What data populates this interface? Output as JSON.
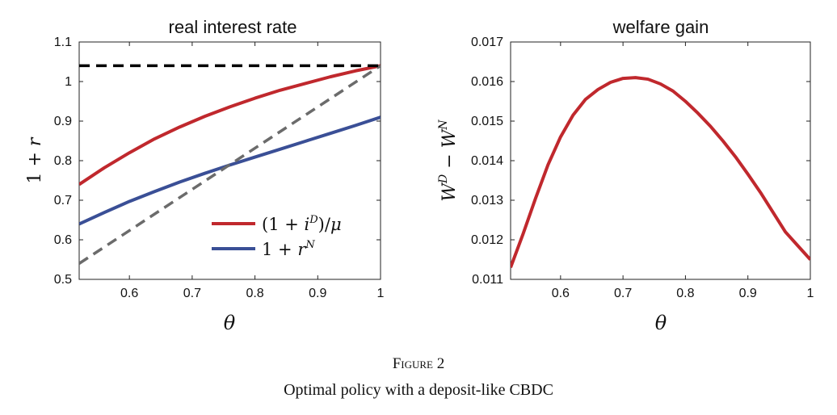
{
  "caption": {
    "figure_label": "Figure 2",
    "description": "Optimal policy with a deposit-like CBDC"
  },
  "chart_data": [
    {
      "type": "line",
      "title": "real interest rate",
      "xlabel": "θ",
      "ylabel": "1 + r",
      "xlim": [
        0.52,
        1.0
      ],
      "ylim": [
        0.5,
        1.1
      ],
      "xticks": [
        0.6,
        0.7,
        0.8,
        0.9,
        1
      ],
      "xtick_labels": [
        "0.6",
        "0.7",
        "0.8",
        "0.9",
        "1"
      ],
      "yticks": [
        0.5,
        0.6,
        0.7,
        0.8,
        0.9,
        1.0,
        1.1
      ],
      "ytick_labels": [
        "0.5",
        "0.6",
        "0.7",
        "0.8",
        "0.9",
        "1",
        "1.1"
      ],
      "grid": false,
      "legend_position": "bottom-right",
      "series": [
        {
          "name": "(1 + i^D)/μ",
          "color": "#c0282d",
          "style": "solid",
          "x": [
            0.52,
            0.56,
            0.6,
            0.64,
            0.68,
            0.72,
            0.76,
            0.8,
            0.84,
            0.88,
            0.92,
            0.96,
            1.0
          ],
          "y": [
            0.74,
            0.782,
            0.82,
            0.855,
            0.885,
            0.912,
            0.936,
            0.958,
            0.978,
            0.995,
            1.012,
            1.027,
            1.04
          ]
        },
        {
          "name": "1 + r^N",
          "color": "#3a4f96",
          "style": "solid",
          "x": [
            0.52,
            0.56,
            0.6,
            0.64,
            0.68,
            0.72,
            0.76,
            0.8,
            0.84,
            0.88,
            0.92,
            0.96,
            1.0
          ],
          "y": [
            0.64,
            0.669,
            0.697,
            0.722,
            0.746,
            0.768,
            0.789,
            0.809,
            0.829,
            0.849,
            0.869,
            0.889,
            0.91
          ]
        },
        {
          "color": "#6b6b6b",
          "style": "dashed",
          "x": [
            0.52,
            1.0
          ],
          "y": [
            0.54,
            1.04
          ]
        },
        {
          "color": "#000000",
          "style": "dashed",
          "x": [
            0.52,
            1.0
          ],
          "y": [
            1.04,
            1.04
          ]
        }
      ]
    },
    {
      "type": "line",
      "title": "welfare gain",
      "xlabel": "θ",
      "ylabel": "W^D − W^N",
      "xlim": [
        0.52,
        1.0
      ],
      "ylim": [
        0.011,
        0.017
      ],
      "xticks": [
        0.6,
        0.7,
        0.8,
        0.9,
        1
      ],
      "xtick_labels": [
        "0.6",
        "0.7",
        "0.8",
        "0.9",
        "1"
      ],
      "yticks": [
        0.011,
        0.012,
        0.013,
        0.014,
        0.015,
        0.016,
        0.017
      ],
      "ytick_labels": [
        "0.011",
        "0.012",
        "0.013",
        "0.014",
        "0.015",
        "0.016",
        "0.017"
      ],
      "grid": false,
      "series": [
        {
          "color": "#c0282d",
          "style": "solid",
          "x": [
            0.52,
            0.54,
            0.56,
            0.58,
            0.6,
            0.62,
            0.64,
            0.66,
            0.68,
            0.7,
            0.72,
            0.74,
            0.76,
            0.78,
            0.8,
            0.82,
            0.84,
            0.86,
            0.88,
            0.9,
            0.92,
            0.94,
            0.96,
            0.98,
            1.0
          ],
          "y": [
            0.0113,
            0.01215,
            0.01305,
            0.0139,
            0.0146,
            0.01515,
            0.01555,
            0.0158,
            0.01598,
            0.01608,
            0.0161,
            0.01606,
            0.01594,
            0.01576,
            0.0155,
            0.0152,
            0.01487,
            0.0145,
            0.0141,
            0.01366,
            0.0132,
            0.0127,
            0.0122,
            0.01185,
            0.0115
          ]
        }
      ]
    }
  ]
}
